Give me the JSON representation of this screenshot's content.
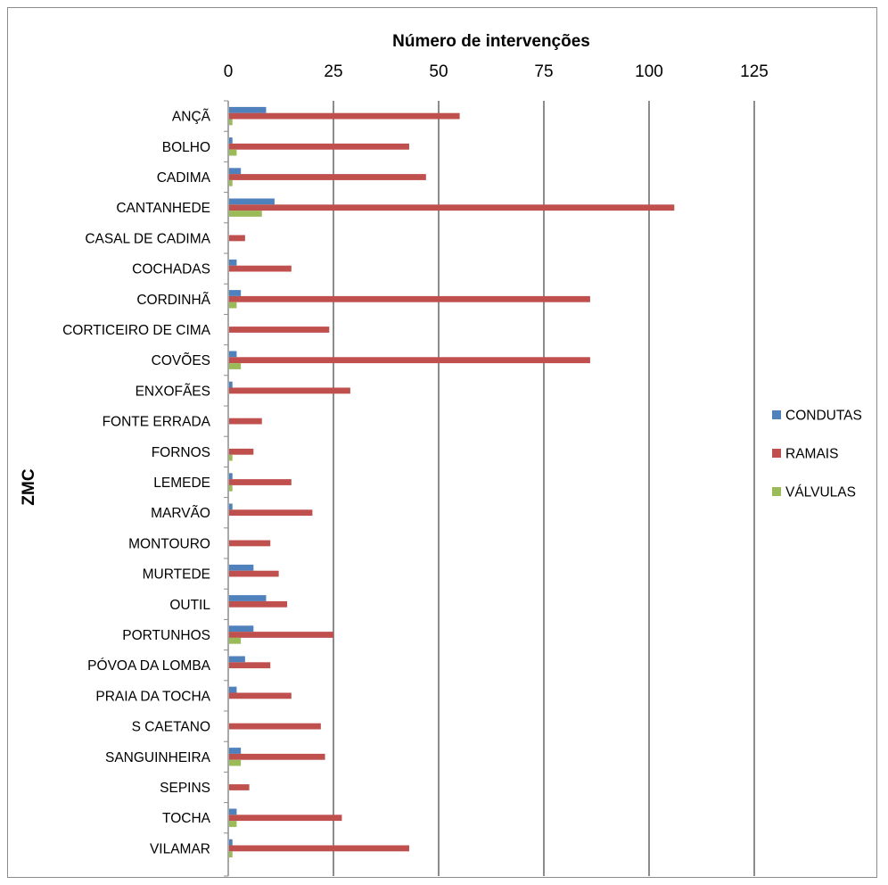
{
  "chart_data": {
    "type": "bar",
    "orientation": "horizontal",
    "title": "",
    "xlabel": "Número de intervenções",
    "ylabel": "ZMC",
    "xlim": [
      0,
      125
    ],
    "xticks": [
      "0",
      "25",
      "50",
      "75",
      "100",
      "125"
    ],
    "xticks_position": "top",
    "grid": "vertical",
    "legend_position": "right",
    "categories": [
      "ANÇÃ",
      "BOLHO",
      "CADIMA",
      "CANTANHEDE",
      "CASAL DE CADIMA",
      "COCHADAS",
      "CORDINHÃ",
      "CORTICEIRO DE CIMA",
      "COVÕES",
      "ENXOFÃES",
      "FONTE ERRADA",
      "FORNOS",
      "LEMEDE",
      "MARVÃO",
      "MONTOURO",
      "MURTEDE",
      "OUTIL",
      "PORTUNHOS",
      "PÓVOA DA LOMBA",
      "PRAIA DA TOCHA",
      "S CAETANO",
      "SANGUINHEIRA",
      "SEPINS",
      "TOCHA",
      "VILAMAR"
    ],
    "series": [
      {
        "name": "CONDUTAS",
        "color": "#4F81BD",
        "values": [
          9,
          1,
          3,
          11,
          0,
          2,
          3,
          0,
          2,
          1,
          0,
          0,
          1,
          1,
          0,
          6,
          9,
          6,
          4,
          2,
          0,
          3,
          0,
          2,
          1
        ]
      },
      {
        "name": "RAMAIS",
        "color": "#C0504D",
        "values": [
          55,
          43,
          47,
          106,
          4,
          15,
          86,
          24,
          86,
          29,
          8,
          6,
          15,
          20,
          10,
          12,
          14,
          25,
          10,
          15,
          22,
          23,
          5,
          27,
          43
        ]
      },
      {
        "name": "VÁLVULAS",
        "color": "#9BBB59",
        "values": [
          1,
          2,
          1,
          8,
          0,
          0,
          2,
          0,
          3,
          0,
          0,
          1,
          1,
          0,
          0,
          0,
          0,
          3,
          0,
          0,
          0,
          3,
          0,
          2,
          1
        ]
      }
    ]
  }
}
